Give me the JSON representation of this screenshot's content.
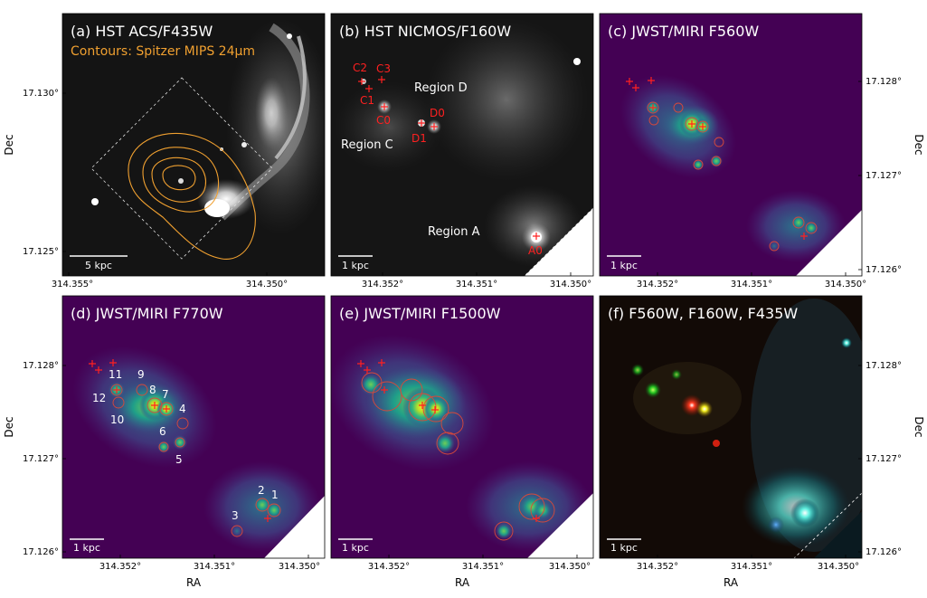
{
  "figure": {
    "axis_labels": {
      "dec": "Dec",
      "ra": "RA"
    },
    "panels": [
      {
        "id": "a",
        "title": "(a) HST ACS/F435W",
        "subtitle": "Contours: Spitzer MIPS 24μm",
        "scalebar": "5 kpc",
        "xticks": [
          "314.355°",
          "314.350°"
        ],
        "yticks_left": [
          "17.130°",
          "17.125°"
        ],
        "yticks_right": [],
        "colormap": "gray",
        "labels": []
      },
      {
        "id": "b",
        "title": "(b) HST NICMOS/F160W",
        "subtitle": "",
        "scalebar": "1 kpc",
        "xticks": [
          "314.352°",
          "314.351°",
          "314.350°"
        ],
        "yticks_left": [],
        "yticks_right": [],
        "colormap": "gray",
        "labels": [
          {
            "text": "C2",
            "color": "red"
          },
          {
            "text": "C3",
            "color": "red"
          },
          {
            "text": "C1",
            "color": "red"
          },
          {
            "text": "C0",
            "color": "red"
          },
          {
            "text": "D0",
            "color": "red"
          },
          {
            "text": "D1",
            "color": "red"
          },
          {
            "text": "A0",
            "color": "red"
          },
          {
            "text": "Region D",
            "color": "white"
          },
          {
            "text": "Region C",
            "color": "white"
          },
          {
            "text": "Region A",
            "color": "white"
          }
        ]
      },
      {
        "id": "c",
        "title": "(c) JWST/MIRI F560W",
        "subtitle": "",
        "scalebar": "1 kpc",
        "xticks": [
          "314.352°",
          "314.351°",
          "314.350°"
        ],
        "yticks_left": [],
        "yticks_right": [
          "17.128°",
          "17.127°",
          "17.126°"
        ],
        "colormap": "viridis",
        "labels": []
      },
      {
        "id": "d",
        "title": "(d) JWST/MIRI F770W",
        "subtitle": "",
        "scalebar": "1 kpc",
        "xticks": [
          "314.352°",
          "314.351°",
          "314.350°"
        ],
        "yticks_left": [
          "17.128°",
          "17.127°",
          "17.126°"
        ],
        "yticks_right": [],
        "colormap": "viridis",
        "labels": [
          {
            "text": "11",
            "color": "white"
          },
          {
            "text": "9",
            "color": "white"
          },
          {
            "text": "8",
            "color": "white"
          },
          {
            "text": "7",
            "color": "white"
          },
          {
            "text": "12",
            "color": "white"
          },
          {
            "text": "4",
            "color": "white"
          },
          {
            "text": "10",
            "color": "white"
          },
          {
            "text": "6",
            "color": "white"
          },
          {
            "text": "5",
            "color": "white"
          },
          {
            "text": "2",
            "color": "white"
          },
          {
            "text": "1",
            "color": "white"
          },
          {
            "text": "3",
            "color": "white"
          }
        ]
      },
      {
        "id": "e",
        "title": "(e) JWST/MIRI F1500W",
        "subtitle": "",
        "scalebar": "1 kpc",
        "xticks": [
          "314.352°",
          "314.351°",
          "314.350°"
        ],
        "yticks_left": [],
        "yticks_right": [],
        "colormap": "viridis",
        "labels": []
      },
      {
        "id": "f",
        "title": "(f) F560W, F160W, F435W",
        "subtitle": "",
        "scalebar": "1 kpc",
        "xticks": [
          "314.352°",
          "314.351°",
          "314.350°"
        ],
        "yticks_left": [],
        "yticks_right": [
          "17.128°",
          "17.127°",
          "17.126°"
        ],
        "colormap": "rgb-composite",
        "labels": []
      }
    ],
    "colors": {
      "contour": "#f0a030",
      "marker": "#ff2020",
      "aperture": "#d8483a",
      "viridis_low": "#440154",
      "viridis_mid": "#21918c",
      "viridis_high": "#fde725"
    }
  }
}
